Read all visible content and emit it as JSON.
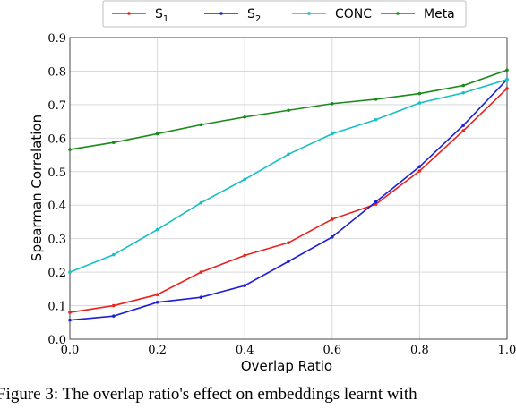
{
  "chart_data": {
    "type": "line",
    "xlabel": "Overlap Ratio",
    "ylabel": "Spearman Correlation",
    "xlim": [
      0.0,
      1.0
    ],
    "ylim": [
      0.0,
      0.9
    ],
    "grid": true,
    "legend_position": "top",
    "x": [
      0.0,
      0.1,
      0.2,
      0.3,
      0.4,
      0.5,
      0.6,
      0.7,
      0.8,
      0.9,
      1.0
    ],
    "x_ticks": [
      "0.0",
      "0.2",
      "0.4",
      "0.6",
      "0.8",
      "1.0"
    ],
    "x_tick_values": [
      0.0,
      0.2,
      0.4,
      0.6,
      0.8,
      1.0
    ],
    "y_ticks": [
      "0.0",
      "0.1",
      "0.2",
      "0.3",
      "0.4",
      "0.5",
      "0.6",
      "0.7",
      "0.8",
      "0.9"
    ],
    "y_tick_values": [
      0.0,
      0.1,
      0.2,
      0.3,
      0.4,
      0.5,
      0.6,
      0.7,
      0.8,
      0.9
    ],
    "series": [
      {
        "name": "S",
        "subscript": "1",
        "color": "#e8221f",
        "values": [
          0.08,
          0.1,
          0.133,
          0.2,
          0.25,
          0.288,
          0.358,
          0.403,
          0.502,
          0.622,
          0.748
        ]
      },
      {
        "name": "S",
        "subscript": "2",
        "color": "#1f1fd6",
        "values": [
          0.057,
          0.069,
          0.11,
          0.125,
          0.16,
          0.232,
          0.305,
          0.41,
          0.515,
          0.638,
          0.775
        ]
      },
      {
        "name": "CONC",
        "subscript": "",
        "color": "#17bfc4",
        "values": [
          0.2,
          0.252,
          0.327,
          0.407,
          0.477,
          0.552,
          0.613,
          0.655,
          0.705,
          0.735,
          0.775
        ]
      },
      {
        "name": "Meta",
        "subscript": "",
        "color": "#1a8a1a",
        "values": [
          0.566,
          0.587,
          0.613,
          0.64,
          0.663,
          0.683,
          0.703,
          0.716,
          0.733,
          0.757,
          0.803
        ]
      }
    ]
  },
  "caption_fragment": "Figure 3: The overlap ratio's effect on embeddings learnt with"
}
